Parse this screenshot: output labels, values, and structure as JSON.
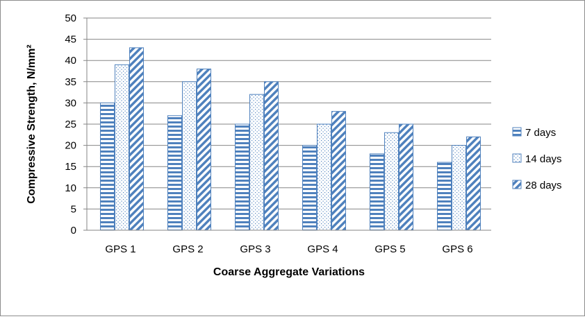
{
  "chart_data": {
    "type": "bar",
    "title": "",
    "xlabel": "Coarse Aggregate Variations",
    "ylabel": "Compressive Strength, N/mm²",
    "ylim": [
      0,
      50
    ],
    "ytick_step": 5,
    "grid": true,
    "legend_position": "right",
    "categories": [
      "GPS 1",
      "GPS 2",
      "GPS 3",
      "GPS 4",
      "GPS 5",
      "GPS 6"
    ],
    "series": [
      {
        "name": "7 days",
        "pattern": "horizontal-stripes",
        "values": [
          30,
          27,
          25,
          20,
          18,
          16
        ]
      },
      {
        "name": "14 days",
        "pattern": "dots",
        "values": [
          39,
          35,
          32,
          25,
          23,
          20
        ]
      },
      {
        "name": "28 days",
        "pattern": "diagonal-stripes",
        "values": [
          43,
          38,
          35,
          28,
          25,
          22
        ]
      }
    ]
  },
  "colors": {
    "bar_stroke": "#4f81bd",
    "gridline": "#868686",
    "axis": "#868686"
  }
}
